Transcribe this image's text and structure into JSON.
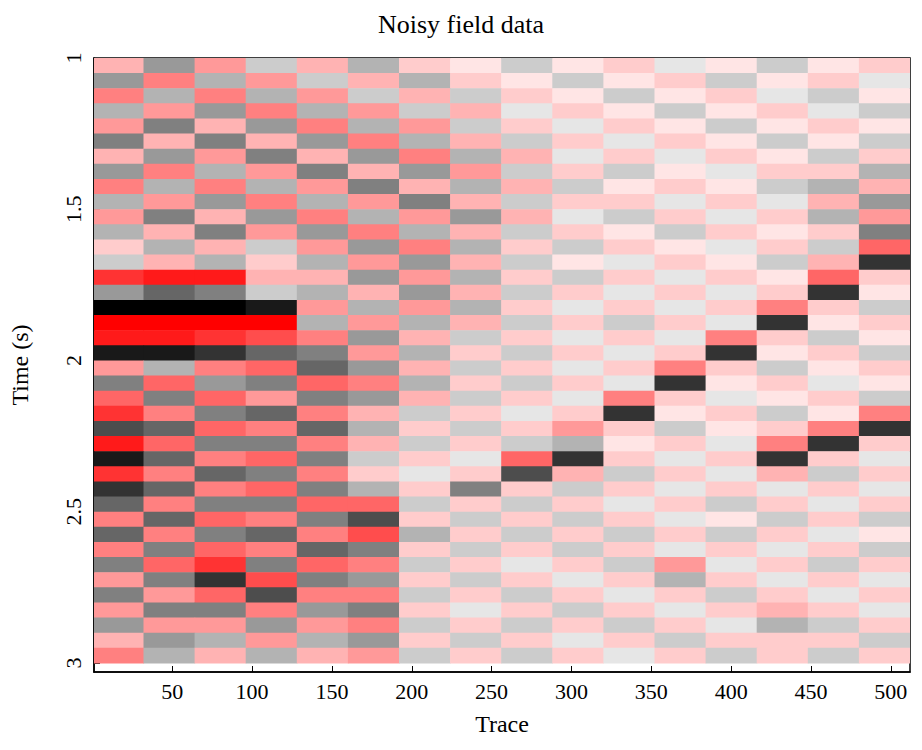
{
  "chart_data": {
    "type": "heatmap",
    "title": "Noisy field data",
    "x_label": "Trace",
    "y_label": "Time (s)",
    "x": [
      16,
      48,
      80,
      112,
      144,
      176,
      208,
      240,
      272,
      304,
      336,
      368,
      400,
      432,
      464,
      496
    ],
    "y": [
      1.025,
      1.075,
      1.125,
      1.175,
      1.225,
      1.275,
      1.325,
      1.375,
      1.425,
      1.475,
      1.525,
      1.575,
      1.625,
      1.675,
      1.725,
      1.775,
      1.825,
      1.875,
      1.925,
      1.975,
      2.025,
      2.075,
      2.125,
      2.175,
      2.225,
      2.275,
      2.325,
      2.375,
      2.425,
      2.475,
      2.525,
      2.575,
      2.625,
      2.675,
      2.725,
      2.775,
      2.825,
      2.875,
      2.925,
      2.975
    ],
    "values": [
      [
        0.3,
        -0.4,
        0.4,
        -0.2,
        0.3,
        -0.3,
        0.2,
        0.1,
        -0.2,
        0.1,
        0.2,
        -0.1,
        0.1,
        -0.2,
        0.1,
        0.2
      ],
      [
        -0.4,
        0.5,
        -0.3,
        0.4,
        -0.2,
        0.3,
        -0.3,
        0.2,
        0.1,
        -0.2,
        0.1,
        0.2,
        -0.2,
        0.1,
        0.2,
        -0.1
      ],
      [
        0.5,
        -0.3,
        0.5,
        -0.3,
        0.4,
        -0.2,
        0.3,
        -0.2,
        0.2,
        0.1,
        -0.2,
        0.1,
        0.2,
        -0.1,
        -0.2,
        0.1
      ],
      [
        -0.3,
        0.4,
        -0.4,
        0.5,
        -0.3,
        0.4,
        -0.2,
        0.3,
        -0.1,
        0.2,
        0.1,
        -0.2,
        0.1,
        0.2,
        -0.1,
        -0.2
      ],
      [
        0.4,
        -0.5,
        0.3,
        -0.4,
        0.5,
        -0.3,
        0.4,
        -0.2,
        0.2,
        -0.1,
        0.2,
        0.1,
        -0.2,
        0.1,
        0.2,
        0.1
      ],
      [
        -0.5,
        0.3,
        -0.5,
        0.3,
        -0.4,
        0.5,
        -0.3,
        0.3,
        -0.2,
        0.2,
        -0.1,
        0.2,
        0.1,
        -0.2,
        0.1,
        -0.2
      ],
      [
        0.3,
        -0.4,
        0.4,
        -0.5,
        0.3,
        -0.4,
        0.5,
        -0.3,
        0.3,
        -0.1,
        0.2,
        -0.1,
        0.2,
        0.1,
        -0.2,
        0.2
      ],
      [
        -0.4,
        0.5,
        -0.3,
        0.4,
        -0.5,
        0.3,
        -0.4,
        0.4,
        -0.2,
        0.2,
        -0.2,
        0.1,
        -0.1,
        0.2,
        0.2,
        -0.3
      ],
      [
        0.5,
        -0.3,
        0.5,
        -0.3,
        0.4,
        -0.5,
        0.3,
        -0.3,
        0.3,
        -0.2,
        0.1,
        0.2,
        0.1,
        -0.2,
        -0.3,
        0.3
      ],
      [
        -0.3,
        0.4,
        -0.4,
        0.5,
        -0.3,
        0.4,
        -0.5,
        0.3,
        -0.2,
        0.2,
        0.2,
        -0.1,
        0.2,
        -0.1,
        0.3,
        -0.4
      ],
      [
        0.4,
        -0.5,
        0.3,
        -0.4,
        0.5,
        -0.3,
        0.4,
        -0.4,
        0.3,
        -0.1,
        -0.2,
        0.2,
        -0.1,
        0.2,
        -0.3,
        0.4
      ],
      [
        -0.3,
        0.3,
        -0.5,
        0.4,
        -0.4,
        0.5,
        -0.3,
        0.3,
        -0.2,
        0.2,
        0.1,
        -0.2,
        0.2,
        0.1,
        0.2,
        -0.5
      ],
      [
        0.2,
        -0.3,
        0.3,
        -0.2,
        0.4,
        -0.4,
        0.5,
        -0.3,
        0.2,
        -0.2,
        0.2,
        0.1,
        -0.1,
        0.2,
        -0.2,
        0.6
      ],
      [
        -0.2,
        0.3,
        -0.3,
        0.2,
        -0.3,
        0.4,
        -0.4,
        0.3,
        -0.2,
        0.1,
        -0.1,
        0.2,
        0.1,
        -0.2,
        0.3,
        -0.8
      ],
      [
        0.8,
        0.9,
        0.9,
        0.3,
        0.3,
        -0.4,
        0.4,
        -0.3,
        0.2,
        -0.2,
        0.2,
        -0.1,
        0.2,
        0.1,
        0.6,
        0.2
      ],
      [
        -0.4,
        -0.6,
        -0.5,
        -0.2,
        -0.3,
        0.3,
        -0.4,
        0.3,
        -0.2,
        0.2,
        -0.1,
        0.2,
        -0.1,
        0.2,
        -0.8,
        0.1
      ],
      [
        -1.0,
        -1.0,
        -1.0,
        -0.9,
        0.4,
        -0.3,
        0.4,
        -0.3,
        0.2,
        -0.1,
        0.2,
        -0.1,
        0.2,
        0.5,
        0.2,
        -0.2
      ],
      [
        1.0,
        1.0,
        1.0,
        1.0,
        -0.3,
        0.4,
        -0.3,
        0.3,
        -0.2,
        0.2,
        -0.2,
        0.2,
        -0.1,
        -0.8,
        0.1,
        0.2
      ],
      [
        0.9,
        0.9,
        0.8,
        0.7,
        0.5,
        -0.4,
        0.3,
        -0.2,
        0.2,
        -0.1,
        0.2,
        -0.1,
        0.5,
        0.2,
        -0.2,
        0.1
      ],
      [
        -0.9,
        -0.9,
        -0.8,
        -0.6,
        -0.5,
        0.4,
        -0.3,
        0.2,
        -0.2,
        0.2,
        -0.1,
        0.2,
        -0.8,
        0.1,
        0.2,
        -0.2
      ],
      [
        0.4,
        -0.3,
        0.5,
        0.6,
        -0.6,
        -0.4,
        0.3,
        -0.2,
        0.2,
        -0.1,
        0.2,
        0.5,
        0.2,
        -0.2,
        0.1,
        0.2
      ],
      [
        -0.5,
        0.6,
        -0.4,
        -0.5,
        0.6,
        0.5,
        -0.3,
        0.2,
        -0.2,
        0.2,
        -0.1,
        -0.8,
        0.1,
        0.2,
        -0.1,
        0.1
      ],
      [
        0.6,
        -0.5,
        0.6,
        0.4,
        -0.5,
        -0.4,
        0.3,
        -0.2,
        0.2,
        -0.1,
        0.5,
        0.2,
        -0.1,
        0.1,
        0.2,
        -0.2
      ],
      [
        0.8,
        0.5,
        -0.5,
        -0.6,
        0.5,
        0.3,
        -0.2,
        0.2,
        -0.1,
        0.2,
        -0.8,
        0.1,
        0.2,
        -0.2,
        0.1,
        0.5
      ],
      [
        -0.7,
        -0.6,
        0.6,
        0.5,
        -0.6,
        -0.3,
        0.2,
        -0.2,
        0.2,
        0.4,
        0.2,
        -0.2,
        0.1,
        0.2,
        0.5,
        -0.8
      ],
      [
        0.9,
        0.6,
        -0.5,
        -0.5,
        0.5,
        0.3,
        -0.2,
        0.2,
        -0.2,
        -0.3,
        0.1,
        0.2,
        -0.1,
        0.5,
        -0.8,
        0.2
      ],
      [
        -0.9,
        -0.6,
        0.5,
        0.6,
        -0.5,
        -0.2,
        0.2,
        -0.1,
        0.6,
        -0.8,
        0.2,
        -0.1,
        0.2,
        -0.8,
        0.2,
        -0.1
      ],
      [
        0.8,
        0.5,
        -0.6,
        -0.5,
        0.5,
        0.2,
        -0.1,
        0.2,
        -0.7,
        0.3,
        -0.2,
        0.2,
        -0.1,
        0.3,
        -0.2,
        0.2
      ],
      [
        -0.8,
        -0.6,
        0.5,
        0.6,
        -0.5,
        -0.3,
        0.2,
        -0.5,
        0.2,
        -0.2,
        0.2,
        -0.1,
        0.2,
        -0.1,
        0.2,
        -0.1
      ],
      [
        -0.6,
        0.5,
        -0.5,
        -0.5,
        0.6,
        0.6,
        -0.2,
        0.2,
        -0.2,
        0.2,
        -0.1,
        0.2,
        -0.2,
        0.2,
        -0.1,
        0.2
      ],
      [
        0.5,
        -0.6,
        0.6,
        0.5,
        -0.5,
        -0.7,
        0.2,
        -0.2,
        0.2,
        -0.2,
        0.2,
        -0.1,
        0.1,
        -0.2,
        0.2,
        -0.2
      ],
      [
        -0.6,
        0.5,
        -0.5,
        -0.6,
        0.5,
        0.7,
        -0.3,
        0.2,
        -0.2,
        0.2,
        -0.2,
        0.2,
        -0.2,
        0.2,
        -0.1,
        0.1
      ],
      [
        0.5,
        -0.5,
        0.6,
        0.5,
        -0.6,
        -0.5,
        0.2,
        -0.2,
        0.2,
        -0.2,
        0.2,
        -0.1,
        0.2,
        -0.1,
        0.2,
        -0.2
      ],
      [
        -0.5,
        0.6,
        0.8,
        -0.5,
        0.6,
        0.5,
        -0.2,
        0.2,
        -0.1,
        0.2,
        -0.2,
        0.4,
        -0.1,
        0.2,
        -0.2,
        0.2
      ],
      [
        0.4,
        -0.5,
        -0.8,
        0.7,
        -0.5,
        -0.4,
        0.2,
        -0.2,
        0.2,
        -0.1,
        0.2,
        -0.3,
        0.2,
        -0.1,
        0.2,
        -0.1
      ],
      [
        -0.5,
        0.4,
        0.6,
        -0.7,
        0.5,
        0.5,
        -0.2,
        0.2,
        -0.2,
        0.2,
        -0.1,
        0.2,
        -0.2,
        0.2,
        -0.1,
        0.2
      ],
      [
        0.4,
        -0.5,
        -0.5,
        0.5,
        -0.4,
        -0.5,
        0.2,
        -0.1,
        0.2,
        -0.2,
        0.2,
        -0.1,
        0.2,
        0.3,
        0.2,
        -0.1
      ],
      [
        -0.4,
        0.4,
        0.4,
        -0.4,
        0.4,
        0.5,
        -0.2,
        0.2,
        -0.2,
        0.2,
        -0.2,
        0.2,
        -0.1,
        -0.3,
        -0.2,
        0.2
      ],
      [
        0.3,
        -0.4,
        -0.3,
        0.4,
        -0.3,
        -0.4,
        0.2,
        -0.2,
        0.2,
        -0.1,
        0.2,
        -0.2,
        0.2,
        0.2,
        0.2,
        -0.2
      ],
      [
        0.5,
        -0.3,
        0.3,
        -0.3,
        0.3,
        0.4,
        -0.2,
        0.2,
        -0.2,
        0.2,
        -0.1,
        0.2,
        -0.2,
        0.2,
        -0.2,
        0.2
      ]
    ],
    "zlim": [
      -1,
      1
    ],
    "xlim": [
      1,
      512
    ],
    "ylim": [
      1,
      3.03
    ],
    "xticks": [
      50,
      100,
      150,
      200,
      250,
      300,
      350,
      400,
      450,
      500
    ],
    "yticks": [
      1,
      1.5,
      2,
      2.5,
      3
    ],
    "grid": false
  }
}
